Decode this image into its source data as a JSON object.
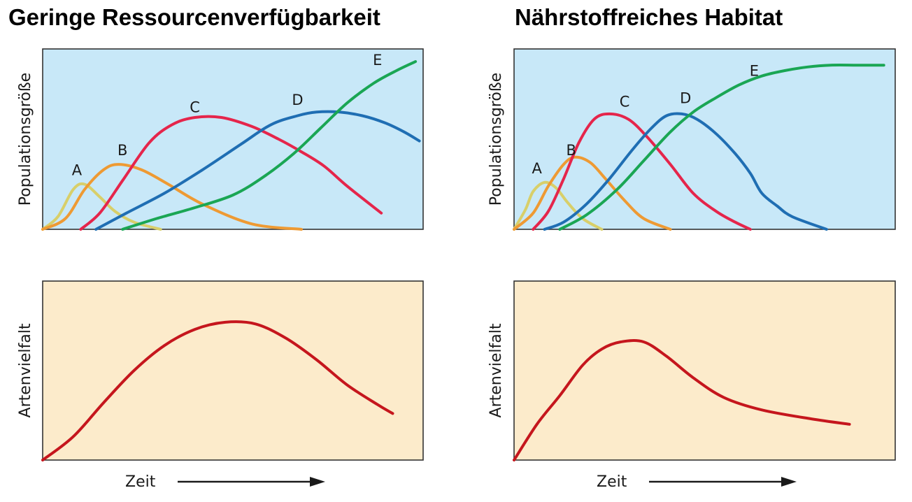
{
  "colors": {
    "A": "#d8cf6a",
    "B": "#ee9a33",
    "C": "#e5254b",
    "D": "#1f6eb3",
    "E": "#1aa654",
    "diversity": "#c5161d",
    "population_bg": "#c8e8f8",
    "diversity_bg": "#fcebcb",
    "frame": "#333333"
  },
  "xlabel": "Zeit",
  "chart_data": [
    {
      "type": "line",
      "title": "Geringe Ressourcenverfügbarkeit",
      "ylabel": "Populationsgröße",
      "xlabel": "",
      "xlim": [
        0,
        100
      ],
      "ylim": [
        0,
        100
      ],
      "grid": false,
      "series": [
        {
          "name": "A",
          "x": [
            0,
            4,
            8,
            11,
            15,
            19,
            24,
            31
          ],
          "y": [
            0,
            7,
            22,
            25,
            18,
            10,
            4,
            0
          ]
        },
        {
          "name": "B",
          "x": [
            0,
            6,
            11,
            16,
            20,
            26,
            33,
            42,
            55,
            68
          ],
          "y": [
            0,
            6,
            22,
            33,
            36,
            33,
            25,
            14,
            3,
            0
          ]
        },
        {
          "name": "C",
          "x": [
            10,
            15,
            21,
            28,
            34,
            40,
            47,
            55,
            62,
            68,
            74,
            80,
            89
          ],
          "y": [
            0,
            9,
            27,
            48,
            58,
            62,
            62,
            57,
            50,
            43,
            35,
            24,
            9
          ]
        },
        {
          "name": "D",
          "x": [
            14,
            22,
            32,
            42,
            52,
            60,
            67,
            72,
            78,
            84,
            90,
            95,
            99
          ],
          "y": [
            0,
            9,
            20,
            33,
            47,
            58,
            63,
            65,
            65,
            63,
            59,
            54,
            49
          ]
        },
        {
          "name": "E",
          "x": [
            21,
            30,
            40,
            50,
            58,
            66,
            73,
            80,
            87,
            93,
            98
          ],
          "y": [
            0,
            6,
            12,
            19,
            29,
            42,
            56,
            70,
            81,
            88,
            93
          ]
        }
      ],
      "annotations": [
        {
          "text": "A",
          "x": 9,
          "y": 30
        },
        {
          "text": "B",
          "x": 21,
          "y": 41
        },
        {
          "text": "C",
          "x": 40,
          "y": 65
        },
        {
          "text": "D",
          "x": 67,
          "y": 69
        },
        {
          "text": "E",
          "x": 88,
          "y": 91
        }
      ]
    },
    {
      "type": "line",
      "title": "Nährstoffreiches Habitat",
      "ylabel": "Populationsgröße",
      "xlabel": "",
      "xlim": [
        0,
        100
      ],
      "ylim": [
        0,
        100
      ],
      "grid": false,
      "series": [
        {
          "name": "A",
          "x": [
            0,
            3,
            5,
            8,
            11,
            14,
            18,
            23
          ],
          "y": [
            0,
            11,
            21,
            26,
            23,
            15,
            6,
            0
          ]
        },
        {
          "name": "B",
          "x": [
            0,
            5,
            9,
            13,
            16,
            20,
            24,
            29,
            34,
            41
          ],
          "y": [
            0,
            9,
            24,
            36,
            40,
            37,
            28,
            16,
            6,
            0
          ]
        },
        {
          "name": "C",
          "x": [
            5,
            9,
            13,
            17,
            21,
            25,
            30,
            35,
            41,
            47,
            53,
            58,
            62
          ],
          "y": [
            0,
            10,
            28,
            48,
            61,
            64,
            61,
            51,
            36,
            20,
            10,
            4,
            0
          ]
        },
        {
          "name": "D",
          "x": [
            8,
            13,
            19,
            25,
            31,
            36,
            40,
            44,
            48,
            53,
            58,
            62,
            65,
            69,
            73,
            82
          ],
          "y": [
            0,
            4,
            14,
            28,
            44,
            56,
            63,
            64,
            61,
            53,
            42,
            31,
            20,
            13,
            7,
            0
          ]
        },
        {
          "name": "E",
          "x": [
            12,
            19,
            27,
            34,
            41,
            47,
            53,
            59,
            65,
            71,
            77,
            83,
            90,
            97
          ],
          "y": [
            0,
            8,
            22,
            38,
            54,
            65,
            73,
            80,
            85,
            88,
            90,
            91,
            91,
            91
          ]
        }
      ],
      "annotations": [
        {
          "text": "A",
          "x": 6,
          "y": 31
        },
        {
          "text": "B",
          "x": 15,
          "y": 41
        },
        {
          "text": "C",
          "x": 29,
          "y": 68
        },
        {
          "text": "D",
          "x": 45,
          "y": 70
        },
        {
          "text": "E",
          "x": 63,
          "y": 85
        }
      ]
    },
    {
      "type": "line",
      "title": "",
      "ylabel": "Artenvielfalt",
      "xlabel": "Zeit",
      "xlim": [
        0,
        100
      ],
      "ylim": [
        0,
        100
      ],
      "grid": false,
      "series": [
        {
          "name": "",
          "x": [
            0,
            8,
            16,
            24,
            32,
            40,
            48,
            56,
            64,
            72,
            80,
            88,
            92
          ],
          "y": [
            0,
            13,
            32,
            50,
            64,
            73,
            77,
            76,
            68,
            56,
            42,
            31,
            26
          ]
        }
      ]
    },
    {
      "type": "line",
      "title": "",
      "ylabel": "Artenvielfalt",
      "xlabel": "Zeit",
      "xlim": [
        0,
        100
      ],
      "ylim": [
        0,
        100
      ],
      "grid": false,
      "series": [
        {
          "name": "",
          "x": [
            0,
            6,
            12,
            18,
            23,
            28,
            34,
            40,
            47,
            55,
            65,
            78,
            88
          ],
          "y": [
            0,
            20,
            36,
            53,
            62,
            66,
            66,
            58,
            46,
            35,
            28,
            23,
            20
          ]
        }
      ]
    }
  ]
}
